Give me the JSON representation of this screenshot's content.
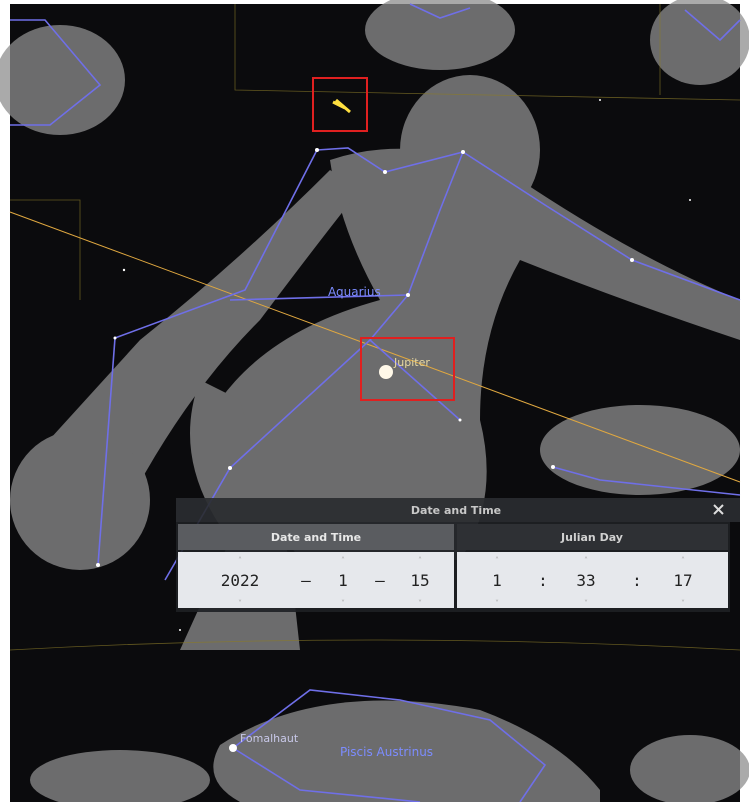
{
  "sky_labels": {
    "aquarius": "Aquarius",
    "jupiter": "Jupiter",
    "fomalhaut": "Fomalhaut",
    "piscis_austrinus": "Piscis Austrinus"
  },
  "dialog": {
    "title": "Date and Time",
    "tabs": [
      "Date and Time",
      "Julian Day"
    ],
    "date": {
      "year": 2022,
      "month": 1,
      "day": 15,
      "separator": "–"
    },
    "time": {
      "hour": 1,
      "minute": 33,
      "second": 17,
      "separator": ":"
    }
  }
}
